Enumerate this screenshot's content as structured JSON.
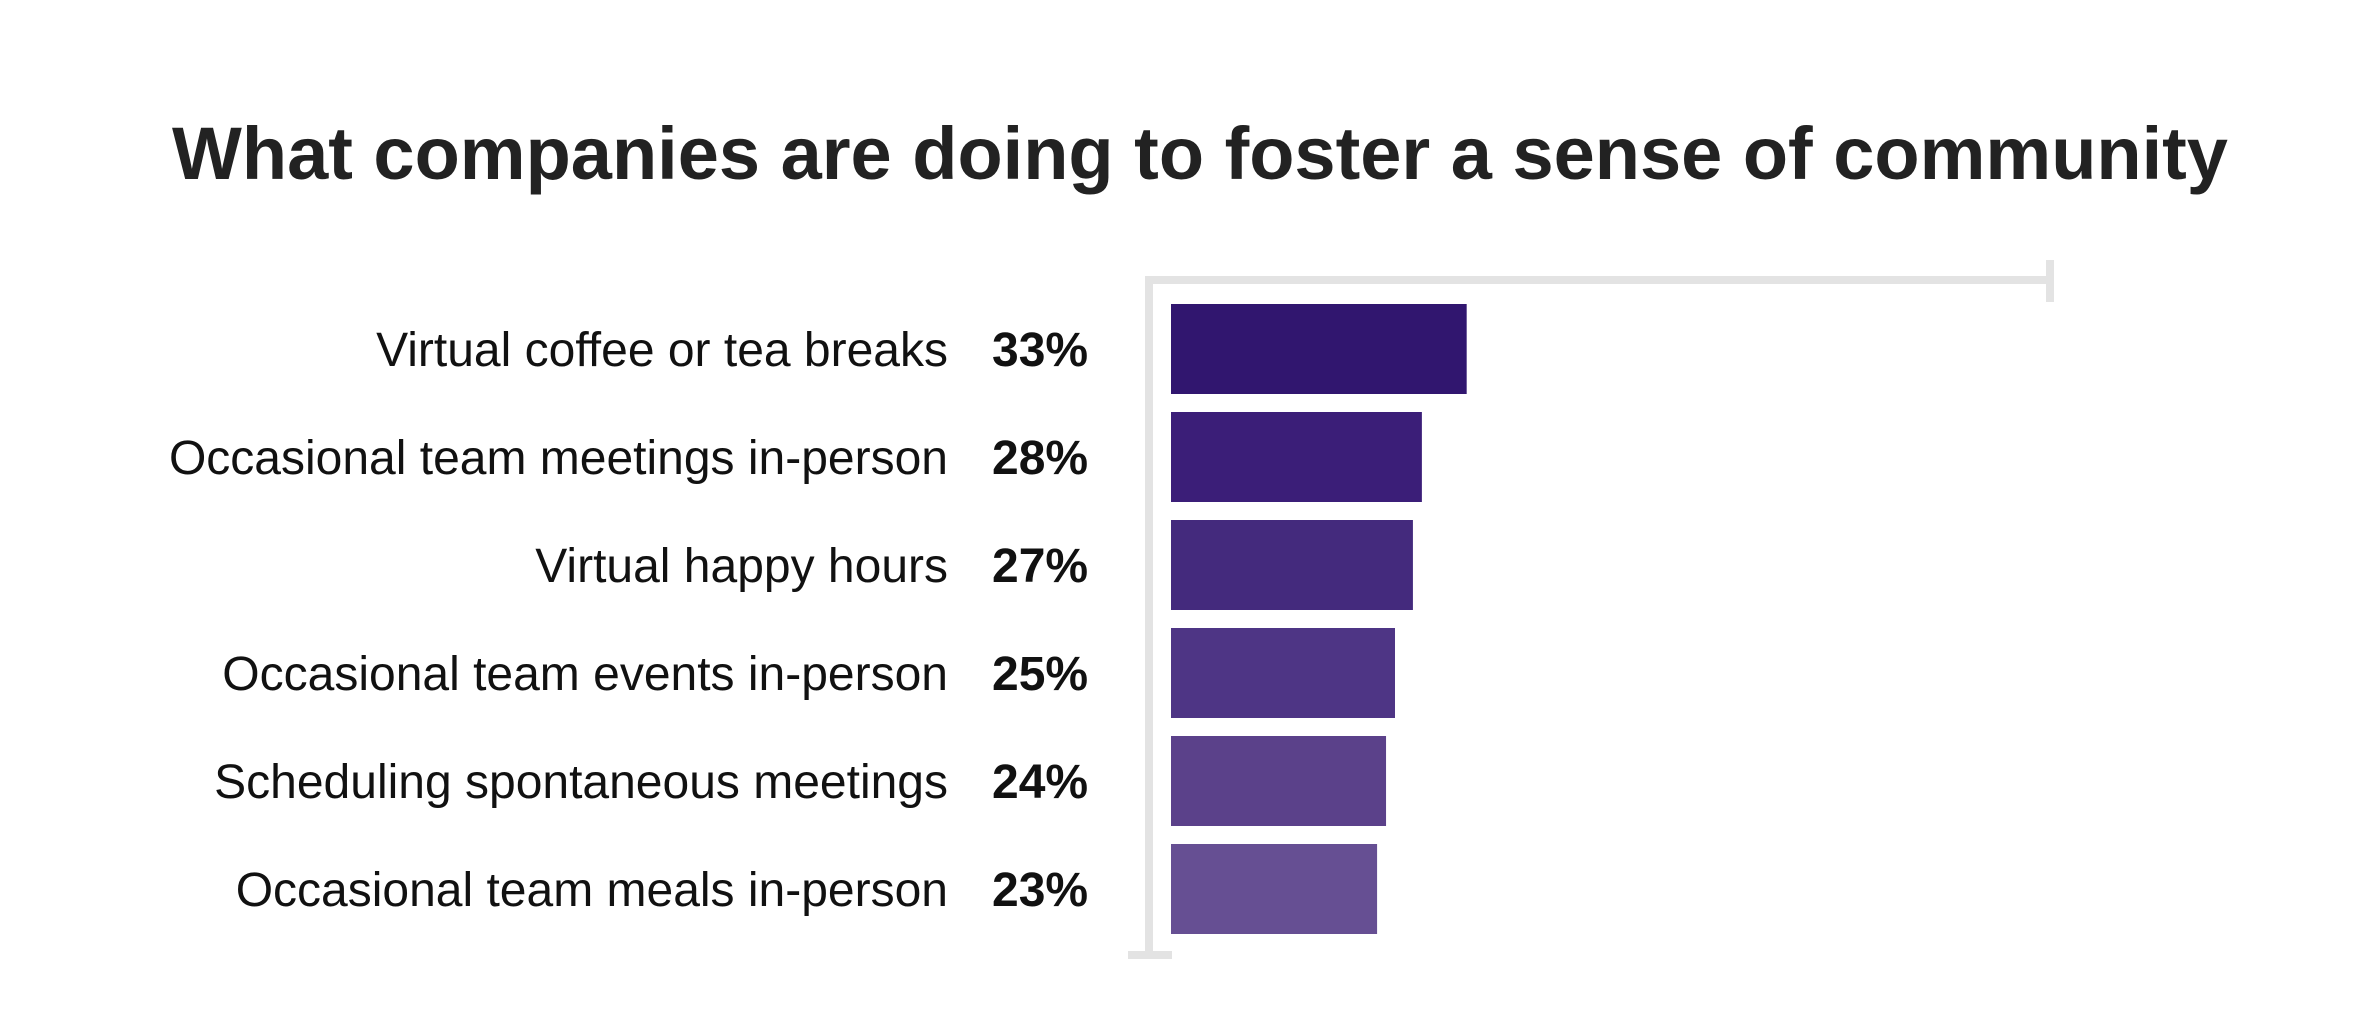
{
  "chart_data": {
    "type": "bar",
    "orientation": "horizontal",
    "title": "What companies are doing to foster a sense of community",
    "categories": [
      "Virtual coffee or tea breaks",
      "Occasional team meetings in-person",
      "Virtual happy hours",
      "Occasional team events in-person",
      "Scheduling spontaneous meetings",
      "Occasional team meals in-person"
    ],
    "values": [
      33,
      28,
      27,
      25,
      24,
      23
    ],
    "value_labels": [
      "33%",
      "28%",
      "27%",
      "25%",
      "24%",
      "23%"
    ],
    "xlim": [
      0,
      100
    ],
    "grid": false,
    "legend": "none",
    "bar_colors": [
      "#31166f",
      "#3b1e78",
      "#442a7d",
      "#4e3585",
      "#5b418a",
      "#664f93"
    ],
    "axis_color": "#e3e3e3"
  }
}
